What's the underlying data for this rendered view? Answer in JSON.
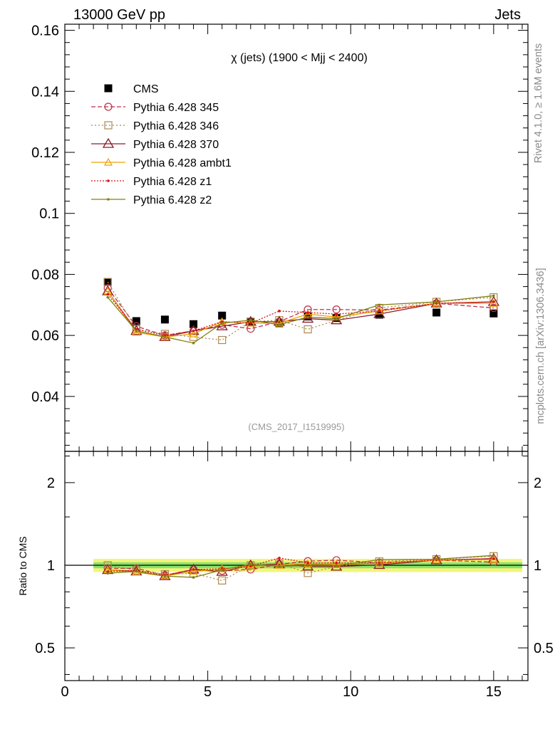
{
  "header": {
    "left_label": "13000 GeV pp",
    "right_label": "Jets"
  },
  "side_labels": {
    "rivet": "Rivet 4.1.0, ≥ 1.6M events",
    "mcplots": "mcplots.cern.ch [arXiv:1306.3436]"
  },
  "colors": {
    "cms": "#000000",
    "p345": "#c0304a",
    "p346": "#b08850",
    "p370": "#8b1a2b",
    "ambt1": "#f0a000",
    "z1": "#dd1111",
    "z2": "#808010",
    "band_inner": "#66dd66",
    "band_outer": "#f4f47a"
  },
  "chart_data": [
    {
      "type": "line",
      "title": "χ (jets) (1900 < Mjj < 2400)",
      "analysis_label": "(CMS_2017_I1519995)",
      "xlim": [
        0,
        16.2
      ],
      "ylim": [
        0.022,
        0.162
      ],
      "yticks": [
        0.04,
        0.06,
        0.08,
        0.1,
        0.12,
        0.14,
        0.16
      ],
      "ytick_labels": [
        "0.04",
        "0.06",
        "0.08",
        "0.1",
        "0.12",
        "0.14",
        "0.16"
      ],
      "x": [
        1.5,
        2.5,
        3.5,
        4.5,
        5.5,
        6.5,
        7.5,
        8.5,
        9.5,
        11,
        13,
        15
      ],
      "series": [
        {
          "name": "CMS",
          "marker": "square",
          "values": [
            0.0775,
            0.0647,
            0.0652,
            0.0637,
            0.0665,
            0.0645,
            0.064,
            0.0662,
            0.0657,
            0.0668,
            0.0675,
            0.0672
          ]
        },
        {
          "name": "Pythia 6.428 345",
          "marker": "circle",
          "dash": "6,3",
          "values": [
            0.0755,
            0.063,
            0.06,
            0.0615,
            0.0635,
            0.0622,
            0.0645,
            0.0685,
            0.0685,
            0.0683,
            0.0705,
            0.069
          ]
        },
        {
          "name": "Pythia 6.428 346",
          "marker": "square-open",
          "dash": "2,3",
          "values": [
            0.0775,
            0.062,
            0.0605,
            0.0595,
            0.0585,
            0.0645,
            0.065,
            0.062,
            0.065,
            0.069,
            0.071,
            0.0725
          ]
        },
        {
          "name": "Pythia 6.428 370",
          "marker": "triangle",
          "dash": "",
          "values": [
            0.0745,
            0.0615,
            0.0595,
            0.0615,
            0.063,
            0.0645,
            0.0645,
            0.0655,
            0.065,
            0.067,
            0.0705,
            0.071
          ]
        },
        {
          "name": "Pythia 6.428 ambt1",
          "marker": "triangle-small",
          "dash": "",
          "values": [
            0.0745,
            0.061,
            0.0595,
            0.0605,
            0.0645,
            0.064,
            0.064,
            0.067,
            0.066,
            0.068,
            0.0705,
            0.0705
          ]
        },
        {
          "name": "Pythia 6.428 z1",
          "marker": "dot",
          "dash": "2,2",
          "values": [
            0.0735,
            0.062,
            0.06,
            0.0615,
            0.0645,
            0.064,
            0.068,
            0.0675,
            0.067,
            0.068,
            0.0705,
            0.071
          ]
        },
        {
          "name": "Pythia 6.428 z2",
          "marker": "dot",
          "dash": "",
          "values": [
            0.0725,
            0.0615,
            0.0595,
            0.0575,
            0.064,
            0.065,
            0.0635,
            0.066,
            0.0655,
            0.07,
            0.071,
            0.073
          ]
        }
      ]
    },
    {
      "type": "line",
      "ylabel": "Ratio to CMS",
      "xlim": [
        0,
        16.2
      ],
      "xticks": [
        0,
        5,
        10,
        15
      ],
      "xtick_labels": [
        "0",
        "5",
        "10",
        "15"
      ],
      "yscale": "log",
      "ylim": [
        0.38,
        2.6
      ],
      "yticks": [
        0.5,
        1,
        2
      ],
      "ytick_labels": [
        "0.5",
        "1",
        "2"
      ],
      "x": [
        1.5,
        2.5,
        3.5,
        4.5,
        5.5,
        6.5,
        7.5,
        8.5,
        9.5,
        11,
        13,
        15
      ],
      "band_x_range": [
        1,
        16
      ],
      "band_inner": [
        0.975,
        1.025
      ],
      "band_outer": [
        0.945,
        1.055
      ],
      "series": [
        {
          "name": "Pythia 6.428 345",
          "values": [
            0.974,
            0.974,
            0.92,
            0.965,
            0.955,
            0.965,
            1.008,
            1.035,
            1.043,
            1.022,
            1.044,
            1.027
          ]
        },
        {
          "name": "Pythia 6.428 346",
          "values": [
            1.0,
            0.958,
            0.928,
            0.934,
            0.88,
            1.0,
            1.016,
            0.937,
            0.989,
            1.033,
            1.052,
            1.079
          ]
        },
        {
          "name": "Pythia 6.428 370",
          "values": [
            0.961,
            0.95,
            0.913,
            0.965,
            0.947,
            1.0,
            1.008,
            0.989,
            0.989,
            1.003,
            1.044,
            1.057
          ]
        },
        {
          "name": "Pythia 6.428 ambt1",
          "values": [
            0.961,
            0.943,
            0.913,
            0.95,
            0.97,
            0.992,
            1.0,
            1.012,
            1.005,
            1.018,
            1.044,
            1.049
          ]
        },
        {
          "name": "Pythia 6.428 z1",
          "values": [
            0.948,
            0.958,
            0.92,
            0.965,
            0.97,
            0.992,
            1.063,
            1.02,
            1.02,
            1.018,
            1.044,
            1.057
          ]
        },
        {
          "name": "Pythia 6.428 z2",
          "values": [
            0.935,
            0.95,
            0.913,
            0.903,
            0.962,
            1.008,
            0.992,
            0.997,
            0.997,
            1.048,
            1.052,
            1.086
          ]
        }
      ]
    }
  ]
}
